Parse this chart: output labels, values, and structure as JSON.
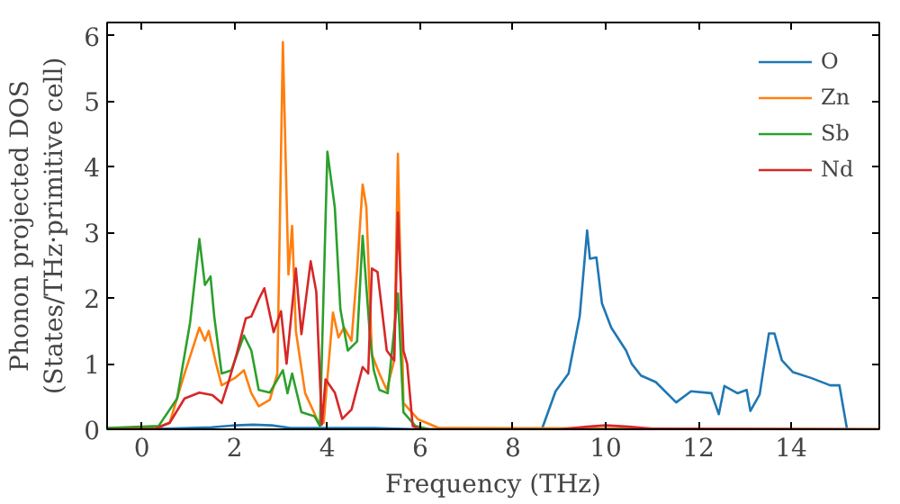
{
  "chart_data": {
    "type": "line",
    "xlabel": "Frequency (THz)",
    "ylabel": "Phonon projected DOS\n(States/THz·primitive cell)",
    "xlim": [
      -0.75,
      15.9
    ],
    "ylim": [
      0,
      6.2
    ],
    "xticks": [
      0,
      2,
      4,
      6,
      8,
      10,
      12,
      14
    ],
    "yticks": [
      0,
      1,
      2,
      3,
      4,
      5,
      6
    ],
    "legend": "top right",
    "grid": false,
    "series": [
      {
        "name": "O",
        "color": "#1f77b4",
        "x": [
          -0.75,
          0.5,
          1.5,
          2.0,
          2.4,
          2.8,
          3.2,
          4.0,
          5.0,
          6.0,
          8.6,
          8.64,
          8.92,
          9.2,
          9.44,
          9.6,
          9.66,
          9.8,
          9.92,
          10.12,
          10.44,
          10.56,
          10.76,
          11.08,
          11.52,
          11.84,
          12.28,
          12.44,
          12.56,
          12.84,
          13.04,
          13.12,
          13.32,
          13.52,
          13.64,
          13.8,
          14.04,
          14.44,
          14.84,
          15.04,
          15.2
        ],
        "values": [
          0,
          0.01,
          0.03,
          0.06,
          0.07,
          0.06,
          0.02,
          0.02,
          0.02,
          0,
          0,
          0.03,
          0.58,
          0.85,
          1.72,
          3.03,
          2.6,
          2.62,
          1.92,
          1.55,
          1.2,
          1.0,
          0.82,
          0.72,
          0.41,
          0.58,
          0.55,
          0.23,
          0.66,
          0.55,
          0.6,
          0.28,
          0.53,
          1.46,
          1.46,
          1.05,
          0.87,
          0.78,
          0.67,
          0.67,
          0.02
        ]
      },
      {
        "name": "Zn",
        "color": "#ff7f0e",
        "x": [
          -0.75,
          0.3,
          0.6,
          0.92,
          1.24,
          1.36,
          1.44,
          1.6,
          1.72,
          2.0,
          2.2,
          2.36,
          2.52,
          2.76,
          2.92,
          3.04,
          3.16,
          3.24,
          3.32,
          3.52,
          3.8,
          3.92,
          4.12,
          4.24,
          4.36,
          4.52,
          4.64,
          4.76,
          4.84,
          4.96,
          5.12,
          5.28,
          5.44,
          5.52,
          5.64,
          5.96,
          6.4,
          15.9
        ],
        "values": [
          0.02,
          0.02,
          0.1,
          0.85,
          1.55,
          1.35,
          1.5,
          1.0,
          0.67,
          0.78,
          0.9,
          0.55,
          0.35,
          0.45,
          0.85,
          5.9,
          2.36,
          3.1,
          1.5,
          0.55,
          0.12,
          0.1,
          1.78,
          1.4,
          1.55,
          1.35,
          2.42,
          3.73,
          3.39,
          1.14,
          0.85,
          0.6,
          1.05,
          4.2,
          0.4,
          0.15,
          0.02,
          0
        ]
      },
      {
        "name": "Sb",
        "color": "#2ca02c",
        "x": [
          -0.75,
          0.36,
          0.76,
          1.04,
          1.24,
          1.36,
          1.48,
          1.56,
          1.72,
          1.93,
          2.2,
          2.36,
          2.52,
          2.76,
          3.04,
          3.14,
          3.24,
          3.44,
          3.72,
          3.84,
          4.0,
          4.16,
          4.28,
          4.44,
          4.64,
          4.76,
          4.92,
          5.0,
          5.12,
          5.3,
          5.52,
          5.64,
          5.9,
          6.2,
          15.9
        ],
        "values": [
          0.02,
          0.05,
          0.47,
          1.63,
          2.9,
          2.2,
          2.33,
          1.72,
          0.85,
          0.9,
          1.43,
          1.2,
          0.6,
          0.56,
          0.9,
          0.55,
          0.85,
          0.26,
          0.2,
          0.05,
          4.23,
          3.38,
          1.83,
          1.2,
          1.34,
          2.95,
          1.4,
          0.9,
          0.6,
          0.55,
          2.07,
          0.26,
          0.05,
          0,
          0
        ]
      },
      {
        "name": "Nd",
        "color": "#d62728",
        "x": [
          -0.75,
          0.3,
          0.6,
          0.92,
          1.24,
          1.52,
          1.72,
          1.88,
          2.04,
          2.24,
          2.36,
          2.52,
          2.64,
          2.84,
          3.0,
          3.12,
          3.32,
          3.44,
          3.64,
          3.76,
          3.88,
          3.96,
          4.16,
          4.32,
          4.52,
          4.76,
          4.88,
          4.96,
          5.08,
          5.28,
          5.44,
          5.52,
          5.64,
          5.72,
          5.84,
          6.0,
          9.0,
          9.6,
          10.0,
          10.5,
          11.0,
          15.9
        ],
        "values": [
          0,
          0.01,
          0.1,
          0.47,
          0.56,
          0.52,
          0.4,
          0.75,
          1.14,
          1.69,
          1.72,
          1.98,
          2.15,
          1.48,
          1.8,
          1.0,
          2.45,
          1.45,
          2.56,
          2.1,
          0.07,
          0.76,
          0.56,
          0.16,
          0.3,
          0.95,
          0.85,
          2.45,
          2.4,
          1.2,
          1.05,
          3.3,
          1.2,
          1.0,
          0.05,
          0,
          0,
          0.04,
          0.06,
          0.04,
          0.01,
          0
        ]
      }
    ]
  }
}
